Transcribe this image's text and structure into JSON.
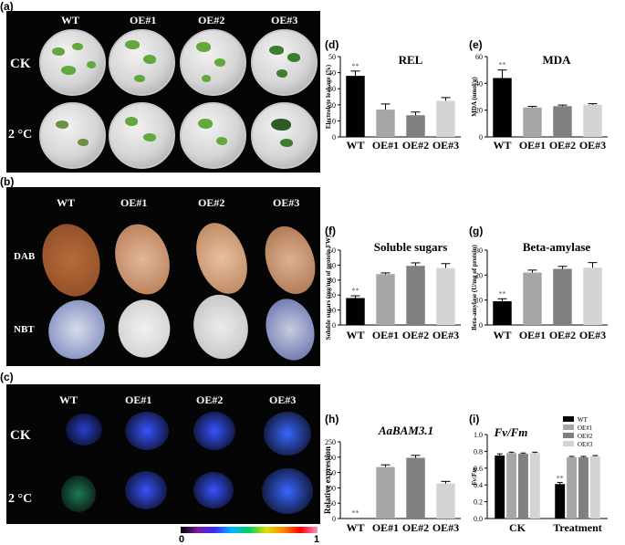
{
  "panels": {
    "a": {
      "label": "(a)",
      "columns": [
        "WT",
        "OE#1",
        "OE#2",
        "OE#3"
      ],
      "rows": [
        "CK",
        "2 °C"
      ]
    },
    "b": {
      "label": "(b)",
      "columns": [
        "WT",
        "OE#1",
        "OE#2",
        "OE#3"
      ],
      "rows": [
        "DAB",
        "NBT"
      ]
    },
    "c": {
      "label": "(c)",
      "columns": [
        "WT",
        "OE#1",
        "OE#2",
        "OE#3"
      ],
      "rows": [
        "CK",
        "2 °C"
      ],
      "scale_min": "0",
      "scale_max": "1"
    }
  },
  "chart_data": [
    {
      "id": "d",
      "label": "(d)",
      "type": "bar",
      "title": "REL",
      "title_style": "bold",
      "ylabel": "Electrolyte leakage (%)",
      "categories": [
        "WT",
        "OE#1",
        "OE#2",
        "OE#3"
      ],
      "values": [
        38,
        17,
        13.5,
        22.5
      ],
      "errors": [
        3,
        3.5,
        2,
        2
      ],
      "sig": [
        "**",
        "",
        "",
        ""
      ],
      "ylim": [
        0,
        50
      ],
      "yticks": [
        "0",
        "10",
        "20",
        "30",
        "40",
        "50"
      ],
      "colors": [
        "#000000",
        "#a6a6a6",
        "#808080",
        "#d4d4d4"
      ]
    },
    {
      "id": "e",
      "label": "(e)",
      "type": "bar",
      "title": "MDA",
      "title_style": "bold",
      "ylabel": "MDA (nmol/g)",
      "categories": [
        "WT",
        "OE#1",
        "OE#2",
        "OE#3"
      ],
      "values": [
        44,
        22,
        23,
        24
      ],
      "errors": [
        6,
        0.8,
        0.8,
        0.8
      ],
      "sig": [
        "**",
        "",
        "",
        ""
      ],
      "ylim": [
        0,
        60
      ],
      "yticks": [
        "0",
        "20",
        "40",
        "60"
      ],
      "colors": [
        "#000000",
        "#a6a6a6",
        "#808080",
        "#d4d4d4"
      ]
    },
    {
      "id": "f",
      "label": "(f)",
      "type": "bar",
      "title": "Soluble sugars",
      "title_style": "bold",
      "ylabel": "Soluble sugars (mg/mg of protein FW)",
      "categories": [
        "WT",
        "OE#1",
        "OE#2",
        "OE#3"
      ],
      "values": [
        18,
        34,
        39.5,
        38
      ],
      "errors": [
        1.5,
        0.8,
        2,
        3
      ],
      "sig": [
        "**",
        "",
        "",
        ""
      ],
      "ylim": [
        0,
        50
      ],
      "yticks": [
        "0",
        "10",
        "20",
        "30",
        "40",
        "50"
      ],
      "colors": [
        "#000000",
        "#a6a6a6",
        "#808080",
        "#d4d4d4"
      ]
    },
    {
      "id": "g",
      "label": "(g)",
      "type": "bar",
      "title": "Beta-amylase",
      "title_style": "bold",
      "ylabel": "Beta-amylase (U/mg of protein)",
      "categories": [
        "WT",
        "OE#1",
        "OE#2",
        "OE#3"
      ],
      "values": [
        9.5,
        21,
        22.5,
        23
      ],
      "errors": [
        1,
        1,
        1,
        2
      ],
      "sig": [
        "**",
        "",
        "",
        ""
      ],
      "ylim": [
        0,
        30
      ],
      "yticks": [
        "0",
        "10",
        "20",
        "30"
      ],
      "colors": [
        "#000000",
        "#a6a6a6",
        "#808080",
        "#d4d4d4"
      ]
    },
    {
      "id": "h",
      "label": "(h)",
      "type": "bar",
      "title": "AaBAM3.1",
      "title_style": "bolditalic",
      "ylabel": "Relative expression",
      "categories": [
        "WT",
        "OE#1",
        "OE#2",
        "OE#3"
      ],
      "values": [
        1,
        168,
        198,
        114
      ],
      "errors": [
        0,
        7,
        8,
        7
      ],
      "sig": [
        "**",
        "",
        "",
        ""
      ],
      "ylim": [
        0,
        250
      ],
      "yticks": [
        "0",
        "50",
        "100",
        "150",
        "200",
        "250"
      ],
      "colors": [
        "#000000",
        "#a6a6a6",
        "#808080",
        "#d4d4d4"
      ]
    },
    {
      "id": "i",
      "label": "(i)",
      "type": "bar",
      "title": "Fv/Fm",
      "title_style": "bolditalic",
      "ylabel": "Fv/Fm",
      "categories": [
        "CK",
        "Treatment"
      ],
      "series": [
        {
          "name": "WT",
          "values": [
            0.75,
            0.41
          ],
          "errors": [
            0.02,
            0.02
          ],
          "color": "#000000"
        },
        {
          "name": "OE#1",
          "values": [
            0.78,
            0.73
          ],
          "errors": [
            0.01,
            0.01
          ],
          "color": "#a6a6a6"
        },
        {
          "name": "OE#2",
          "values": [
            0.77,
            0.73
          ],
          "errors": [
            0.01,
            0.01
          ],
          "color": "#808080"
        },
        {
          "name": "OE#3",
          "values": [
            0.78,
            0.74
          ],
          "errors": [
            0.01,
            0.01
          ],
          "color": "#d4d4d4"
        }
      ],
      "sig": [
        [
          "",
          "",
          "",
          ""
        ],
        [
          "**",
          "",
          "",
          ""
        ]
      ],
      "ylim": [
        0,
        1.0
      ],
      "yticks": [
        "0.0",
        "0.2",
        "0.4",
        "0.6",
        "0.8",
        "1.0"
      ],
      "legend": "top-right"
    }
  ]
}
